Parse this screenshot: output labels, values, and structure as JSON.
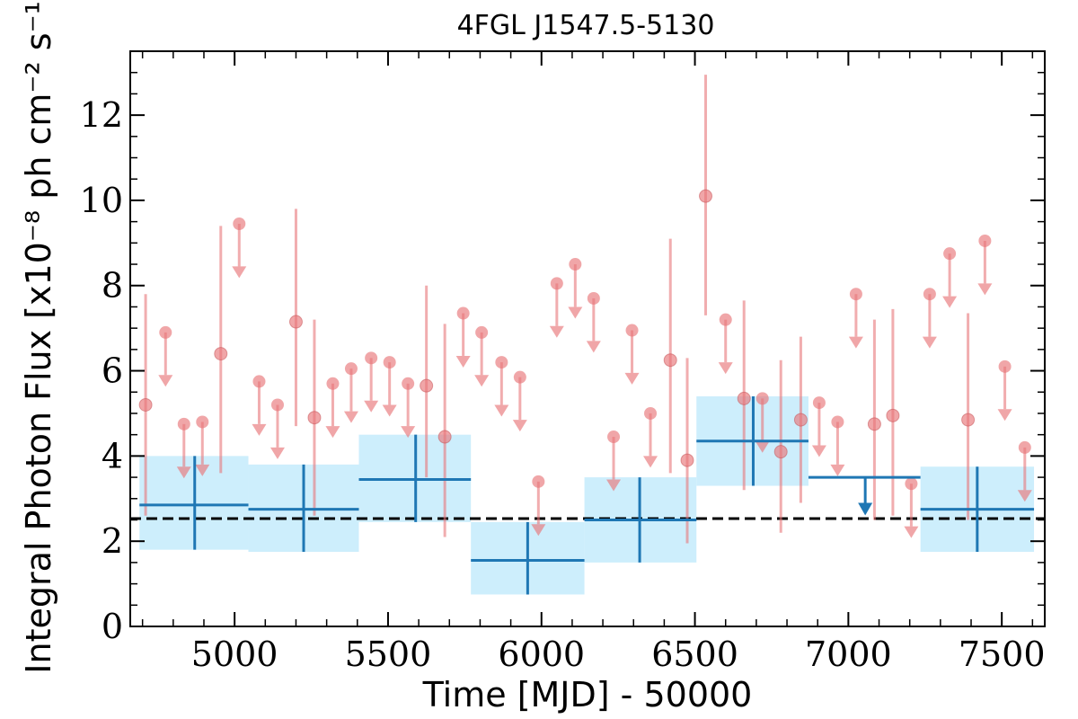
{
  "chart_data": {
    "type": "scatter",
    "title": "4FGL J1547.5-5130",
    "xlabel": "Time [MJD] - 50000",
    "ylabel": "Integral Photon Flux [x10⁻⁸ ph cm⁻² s⁻¹]",
    "xlim": [
      4660,
      7640
    ],
    "ylim": [
      0,
      13.5
    ],
    "x_ticks": [
      5000,
      5500,
      6000,
      6500,
      7000,
      7500
    ],
    "x_tick_labels": [
      "5000",
      "5500",
      "6000",
      "6500",
      "7000",
      "7500"
    ],
    "y_ticks": [
      0,
      2,
      4,
      6,
      8,
      10,
      12
    ],
    "y_tick_labels": [
      "0",
      "2",
      "4",
      "6",
      "8",
      "10",
      "12"
    ],
    "grid": false,
    "average_flux": 2.53,
    "colors": {
      "short_bins": "#e8767a",
      "long_bins": "#1f77b4",
      "long_bins_band": "#cdeefc",
      "average_line": "#000000"
    },
    "short_bins_detections": [
      {
        "x": 4710,
        "y": 5.2,
        "ylo": 2.6,
        "yhi": 7.8
      },
      {
        "x": 4955,
        "y": 6.4,
        "ylo": 3.6,
        "yhi": 9.4
      },
      {
        "x": 5200,
        "y": 7.15,
        "ylo": 4.7,
        "yhi": 9.8
      },
      {
        "x": 5260,
        "y": 4.9,
        "ylo": 2.6,
        "yhi": 7.2
      },
      {
        "x": 5625,
        "y": 5.65,
        "ylo": 3.5,
        "yhi": 8.0
      },
      {
        "x": 5685,
        "y": 4.45,
        "ylo": 2.1,
        "yhi": 7.1
      },
      {
        "x": 6420,
        "y": 6.25,
        "ylo": 3.6,
        "yhi": 9.1
      },
      {
        "x": 6475,
        "y": 3.9,
        "ylo": 1.95,
        "yhi": 6.3
      },
      {
        "x": 6535,
        "y": 10.1,
        "ylo": 7.3,
        "yhi": 12.95
      },
      {
        "x": 6660,
        "y": 5.35,
        "ylo": 3.2,
        "yhi": 7.65
      },
      {
        "x": 6780,
        "y": 4.1,
        "ylo": 2.2,
        "yhi": 6.25
      },
      {
        "x": 6845,
        "y": 4.85,
        "ylo": 2.9,
        "yhi": 6.8
      },
      {
        "x": 7085,
        "y": 4.75,
        "ylo": 2.5,
        "yhi": 7.2
      },
      {
        "x": 7145,
        "y": 4.95,
        "ylo": 2.6,
        "yhi": 7.45
      },
      {
        "x": 7390,
        "y": 4.85,
        "ylo": 2.5,
        "yhi": 7.35
      }
    ],
    "short_bins_upper_limits": [
      {
        "x": 4775,
        "y": 6.9
      },
      {
        "x": 4835,
        "y": 4.75
      },
      {
        "x": 4895,
        "y": 4.8
      },
      {
        "x": 5015,
        "y": 9.45
      },
      {
        "x": 5080,
        "y": 5.75
      },
      {
        "x": 5140,
        "y": 5.2
      },
      {
        "x": 5320,
        "y": 5.7
      },
      {
        "x": 5380,
        "y": 6.05
      },
      {
        "x": 5445,
        "y": 6.3
      },
      {
        "x": 5505,
        "y": 6.2
      },
      {
        "x": 5565,
        "y": 5.7
      },
      {
        "x": 5745,
        "y": 7.35
      },
      {
        "x": 5805,
        "y": 6.9
      },
      {
        "x": 5870,
        "y": 6.2
      },
      {
        "x": 5930,
        "y": 5.85
      },
      {
        "x": 5990,
        "y": 3.4
      },
      {
        "x": 6050,
        "y": 8.05
      },
      {
        "x": 6110,
        "y": 8.5
      },
      {
        "x": 6170,
        "y": 7.7
      },
      {
        "x": 6235,
        "y": 4.45
      },
      {
        "x": 6295,
        "y": 6.95
      },
      {
        "x": 6355,
        "y": 5.0
      },
      {
        "x": 6600,
        "y": 7.2
      },
      {
        "x": 6720,
        "y": 5.35
      },
      {
        "x": 6905,
        "y": 5.25
      },
      {
        "x": 6965,
        "y": 4.8
      },
      {
        "x": 7025,
        "y": 7.8
      },
      {
        "x": 7205,
        "y": 3.35
      },
      {
        "x": 7265,
        "y": 7.8
      },
      {
        "x": 7330,
        "y": 8.75
      },
      {
        "x": 7445,
        "y": 9.05
      },
      {
        "x": 7510,
        "y": 6.1
      },
      {
        "x": 7575,
        "y": 4.2
      }
    ],
    "long_bins": [
      {
        "x0": 4690,
        "x1": 5045,
        "xc": 4870,
        "y": 2.85,
        "ylo": 1.8,
        "yhi": 4.0,
        "upper_limit": false
      },
      {
        "x0": 5045,
        "x1": 5405,
        "xc": 5225,
        "y": 2.75,
        "ylo": 1.75,
        "yhi": 3.8,
        "upper_limit": false
      },
      {
        "x0": 5405,
        "x1": 5770,
        "xc": 5590,
        "y": 3.45,
        "ylo": 2.45,
        "yhi": 4.5,
        "upper_limit": false
      },
      {
        "x0": 5770,
        "x1": 6140,
        "xc": 5955,
        "y": 1.55,
        "ylo": 0.75,
        "yhi": 2.45,
        "upper_limit": false
      },
      {
        "x0": 6140,
        "x1": 6505,
        "xc": 6320,
        "y": 2.5,
        "ylo": 1.5,
        "yhi": 3.5,
        "upper_limit": false
      },
      {
        "x0": 6505,
        "x1": 6870,
        "xc": 6690,
        "y": 4.35,
        "ylo": 3.3,
        "yhi": 5.4,
        "upper_limit": false
      },
      {
        "x0": 6870,
        "x1": 7235,
        "xc": 7055,
        "y": 3.5,
        "upper_limit": true
      },
      {
        "x0": 7235,
        "x1": 7605,
        "xc": 7420,
        "y": 2.75,
        "ylo": 1.75,
        "yhi": 3.75,
        "upper_limit": false
      }
    ]
  }
}
